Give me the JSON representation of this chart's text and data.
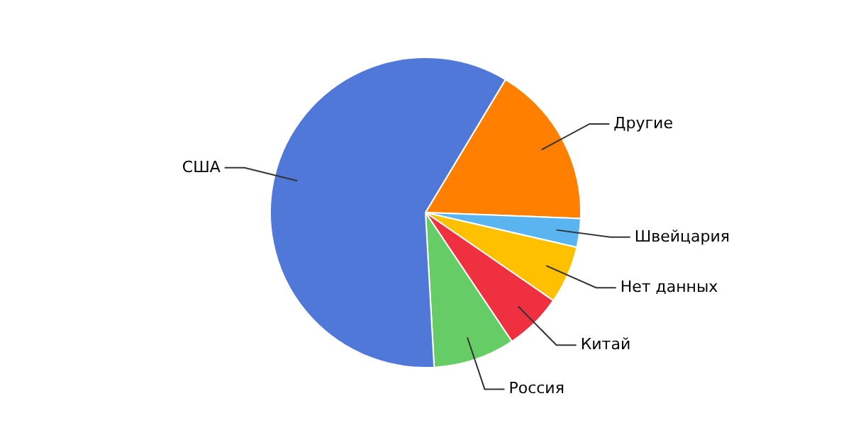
{
  "chart_data": {
    "type": "pie",
    "categories": [
      "Другие",
      "Швейцария",
      "Нет данных",
      "Китай",
      "Россия",
      "США"
    ],
    "values": [
      17,
      3,
      6,
      6,
      8.5,
      59.5
    ],
    "colors": [
      "#ff7f00",
      "#5ab4f0",
      "#ffc000",
      "#ee3040",
      "#66cc66",
      "#5078d8"
    ],
    "legend": false
  }
}
